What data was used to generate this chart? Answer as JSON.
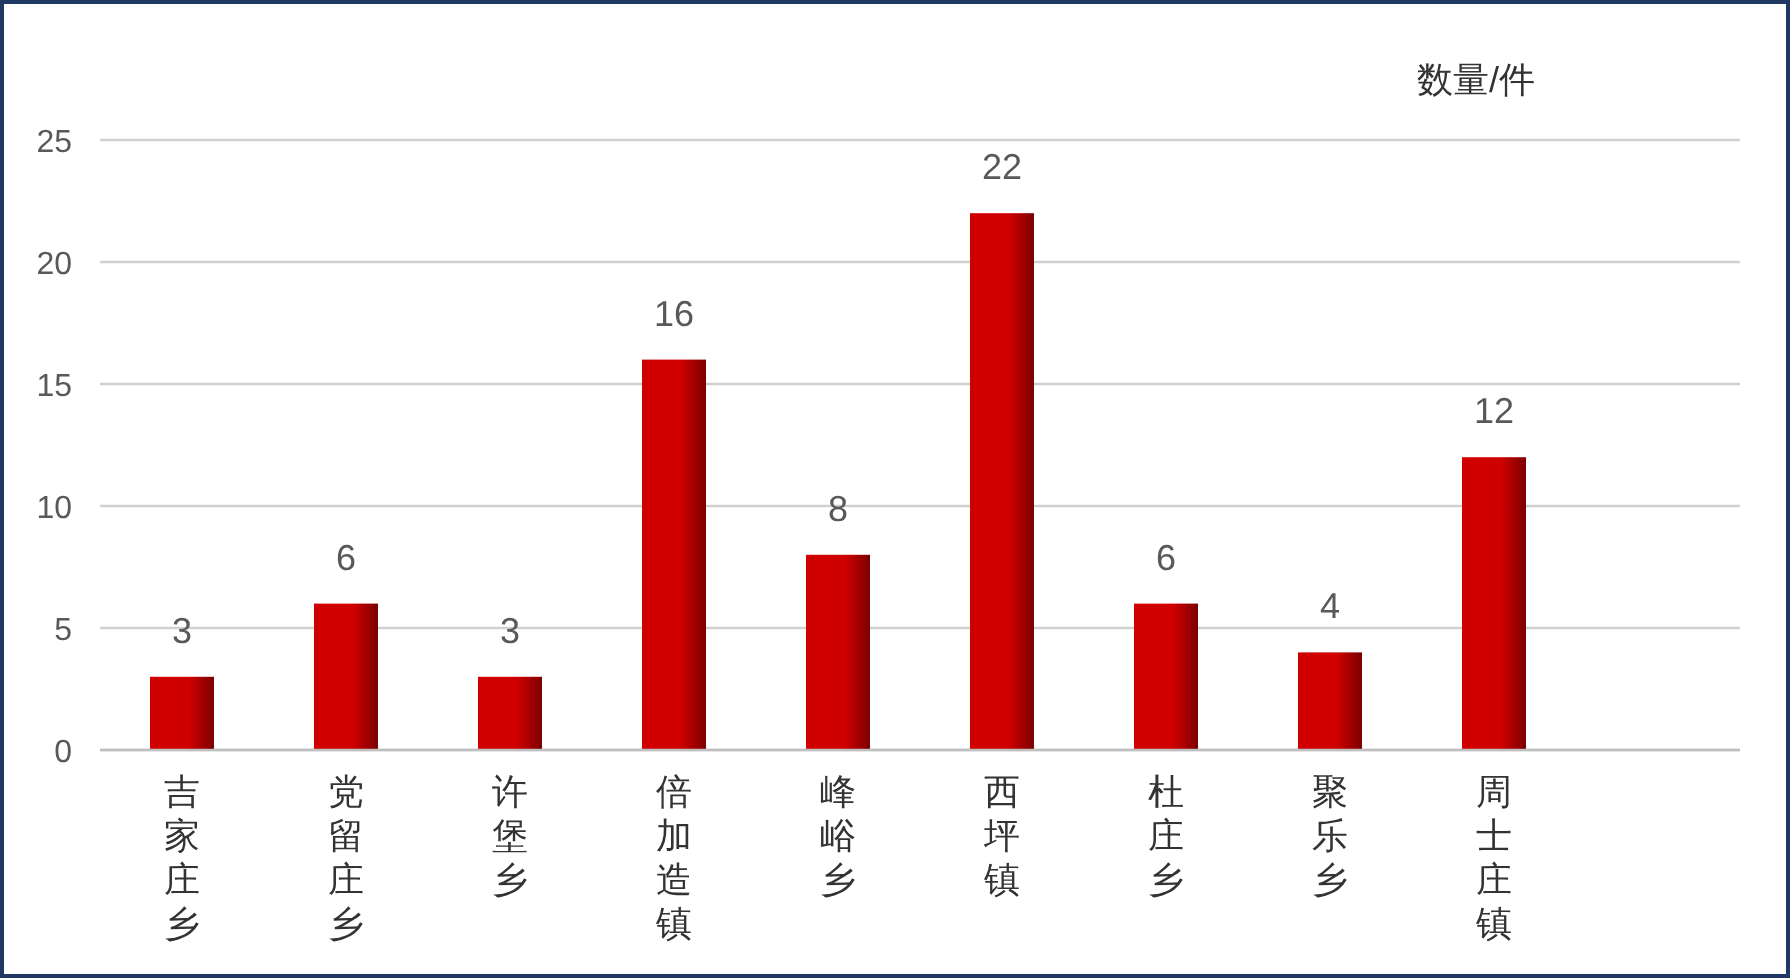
{
  "chart_data": {
    "type": "bar",
    "ylabel": "数量/件",
    "categories": [
      "吉家庄乡",
      "党留庄乡",
      "许堡乡",
      "倍加造镇",
      "峰峪乡",
      "西坪镇",
      "杜庄乡",
      "聚乐乡",
      "周士庄镇",
      null
    ],
    "values": [
      3,
      6,
      3,
      16,
      8,
      22,
      6,
      4,
      12,
      null
    ],
    "color": "#d00000",
    "ylim": [
      0,
      25
    ],
    "yticks": [
      0,
      5,
      10,
      15,
      20,
      25
    ],
    "grid": "y",
    "data_labels": true
  }
}
